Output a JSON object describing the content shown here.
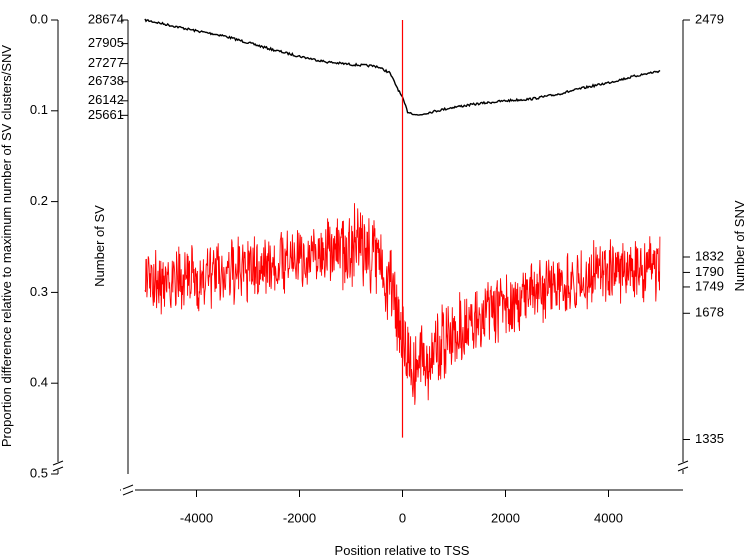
{
  "chart_data": {
    "type": "line",
    "xlabel": "Position relative to TSS",
    "ylabel_left_outer": "Proportion difference relative to maximum number of SV clusters/SNV",
    "ylabel_left_inner": "Number of SV",
    "ylabel_right": "Number of SNV",
    "xlim": [
      -5200,
      5200
    ],
    "ylim": [
      0.0,
      0.5
    ],
    "x_ticks": [
      -4000,
      -2000,
      0,
      2000,
      4000
    ],
    "x_tick_labels": [
      "-4000",
      "-2000",
      "0",
      "2000",
      "4000"
    ],
    "y_ticks": [
      0.0,
      0.1,
      0.2,
      0.3,
      0.4,
      0.5
    ],
    "y_tick_labels": [
      "0.0",
      "0.1",
      "0.2",
      "0.3",
      "0.4",
      "0.5"
    ],
    "sv_axis": {
      "ticks": [
        0.0,
        0.026,
        0.048,
        0.068,
        0.089,
        0.105
      ],
      "labels": [
        "28674",
        "27905",
        "27277",
        "26738",
        "26142",
        "25661"
      ]
    },
    "snv_axis": {
      "ticks": [
        0.0,
        0.261,
        0.278,
        0.294,
        0.323,
        0.462
      ],
      "labels": [
        "2479",
        "1832",
        "1790",
        "1749",
        "1678",
        "1335"
      ]
    },
    "vertical_marker": {
      "x": 0,
      "y_top": 0.0,
      "y_bottom": 0.46,
      "color": "#ff0000"
    },
    "series": [
      {
        "color": "#000000",
        "x": [
          -5000,
          -4500,
          -4000,
          -3500,
          -3000,
          -2500,
          -2000,
          -1500,
          -1000,
          -500,
          -250,
          0,
          100,
          300,
          500,
          1000,
          1500,
          2000,
          2500,
          3000,
          3500,
          4000,
          4500,
          5000
        ],
        "y": [
          0.0,
          0.006,
          0.012,
          0.017,
          0.025,
          0.033,
          0.04,
          0.046,
          0.049,
          0.051,
          0.058,
          0.086,
          0.101,
          0.105,
          0.102,
          0.096,
          0.092,
          0.089,
          0.087,
          0.082,
          0.075,
          0.069,
          0.062,
          0.056
        ]
      },
      {
        "color": "#ff0000",
        "noise_amplitude": 0.06,
        "x": [
          -5000,
          -4000,
          -3000,
          -2000,
          -1000,
          -500,
          -200,
          0,
          200,
          400,
          700,
          1000,
          2000,
          3000,
          4000,
          5000
        ],
        "y": [
          0.29,
          0.285,
          0.275,
          0.262,
          0.248,
          0.26,
          0.295,
          0.345,
          0.38,
          0.375,
          0.36,
          0.345,
          0.315,
          0.29,
          0.278,
          0.272
        ]
      }
    ]
  }
}
